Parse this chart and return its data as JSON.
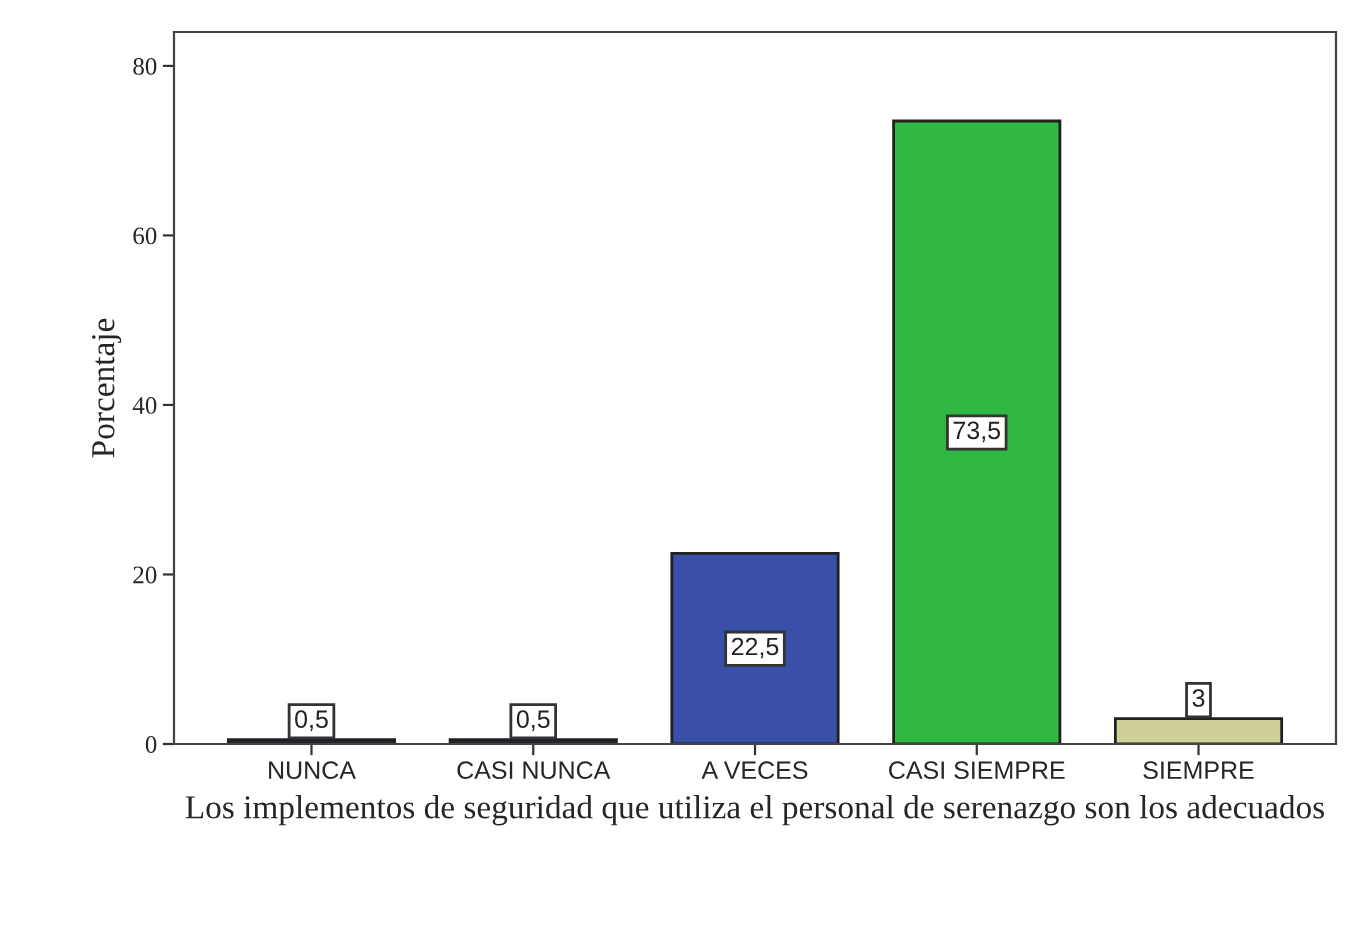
{
  "chart_data": {
    "type": "bar",
    "xlabel": "Los implementos de seguridad que utiliza el personal de serenazgo son los adecuados",
    "ylabel": "Porcentaje",
    "categories": [
      "NUNCA",
      "CASI NUNCA",
      "A VECES",
      "CASI SIEMPRE",
      "SIEMPRE"
    ],
    "values": [
      0.5,
      0.5,
      22.5,
      73.5,
      3
    ],
    "colors": [
      "#2a2a3a",
      "#2a2a3a",
      "#3a4fa8",
      "#30b845",
      "#cfcf98"
    ],
    "value_labels": [
      "0,5",
      "0,5",
      "22,5",
      "73,5",
      "3"
    ],
    "ylim": [
      0,
      84
    ],
    "yticks": [
      0,
      20,
      40,
      60,
      80
    ],
    "grid": false
  }
}
